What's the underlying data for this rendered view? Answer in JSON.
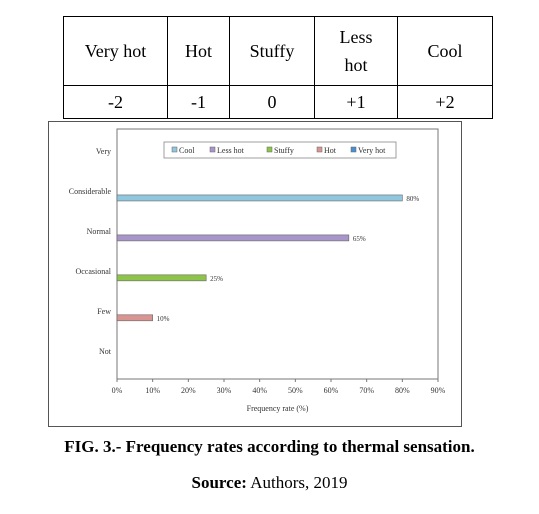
{
  "scale_table": {
    "labels": [
      "Very hot",
      "Hot",
      "Stuffy",
      "Less hot",
      "Cool"
    ],
    "values": [
      "-2",
      "-1",
      "0",
      "+1",
      "+2"
    ]
  },
  "chart_data": {
    "type": "bar",
    "orientation": "horizontal",
    "categories": [
      "Very",
      "Considerable",
      "Normal",
      "Occasional",
      "Few",
      "Not"
    ],
    "series": [
      {
        "name": "Cool",
        "color": "#8fc7df",
        "values": [
          null,
          80,
          null,
          null,
          null,
          null
        ],
        "labels": [
          null,
          "80%",
          null,
          null,
          null,
          null
        ]
      },
      {
        "name": "Less hot",
        "color": "#a895c9",
        "values": [
          null,
          null,
          65,
          null,
          null,
          null
        ],
        "labels": [
          null,
          null,
          "65%",
          null,
          null,
          null
        ]
      },
      {
        "name": "Stuffy",
        "color": "#8dc449",
        "values": [
          null,
          null,
          null,
          25,
          null,
          null
        ],
        "labels": [
          null,
          null,
          null,
          "25%",
          null,
          null
        ]
      },
      {
        "name": "Hot",
        "color": "#d99592",
        "values": [
          null,
          null,
          null,
          null,
          10,
          null
        ],
        "labels": [
          null,
          null,
          null,
          null,
          "10%",
          null
        ]
      },
      {
        "name": "Very hot",
        "color": "#4a8fd0",
        "values": [
          null,
          null,
          null,
          null,
          null,
          null
        ],
        "labels": [
          null,
          null,
          null,
          null,
          null,
          null
        ]
      }
    ],
    "xlabel": "Frequency rate (%)",
    "xlim": [
      0,
      90
    ],
    "xticks": [
      "0%",
      "10%",
      "20%",
      "30%",
      "40%",
      "50%",
      "60%",
      "70%",
      "80%",
      "90%"
    ],
    "grid": false,
    "legend_position": "top"
  },
  "caption": {
    "figure": "FIG. 3.- Frequency rates according to thermal sensation.",
    "source_label": "Source:",
    "source_text": " Authors, 2019"
  }
}
